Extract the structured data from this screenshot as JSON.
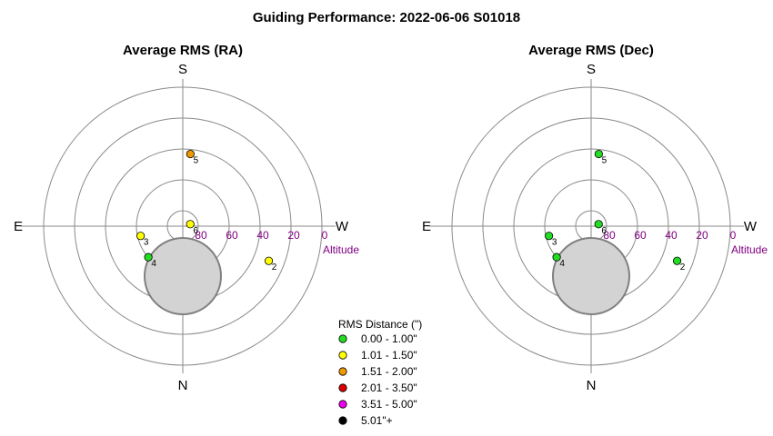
{
  "title": "Guiding Performance: 2022-06-06 S01018",
  "panels": [
    {
      "subtitle": "Average RMS (RA)",
      "key": "ra"
    },
    {
      "subtitle": "Average RMS (Dec)",
      "key": "dec"
    }
  ],
  "directions": {
    "top": "S",
    "bottom": "N",
    "left": "E",
    "right": "W"
  },
  "altitude_ticks": [
    "80",
    "60",
    "40",
    "20",
    "0"
  ],
  "altitude_label": "Altitude",
  "legend": {
    "title": "RMS Distance (\")",
    "items": [
      {
        "label": "0.00 - 1.00\"",
        "color": "#22dd22"
      },
      {
        "label": "1.01 - 1.50\"",
        "color": "#ffff00"
      },
      {
        "label": "1.51 - 2.00\"",
        "color": "#ee9900"
      },
      {
        "label": "2.01 - 3.50\"",
        "color": "#dd0000"
      },
      {
        "label": "3.51 - 5.00\"",
        "color": "#ee00ee"
      },
      {
        "label": "5.01\"+",
        "color": "#000000"
      }
    ]
  },
  "chart_data": [
    {
      "type": "scatter",
      "projection": "polar",
      "title": "Average RMS (RA)",
      "points": [
        {
          "id": "2",
          "azimuth": 292,
          "altitude": 30,
          "color": "#ffff00"
        },
        {
          "id": "3",
          "azimuth": 77,
          "altitude": 62,
          "color": "#ffff00"
        },
        {
          "id": "4",
          "azimuth": 48,
          "altitude": 60,
          "color": "#22dd22"
        },
        {
          "id": "5",
          "azimuth": 186,
          "altitude": 43,
          "color": "#ee9900"
        },
        {
          "id": "6",
          "azimuth": 255,
          "altitude": 85,
          "color": "#ffff00"
        }
      ]
    },
    {
      "type": "scatter",
      "projection": "polar",
      "title": "Average RMS (Dec)",
      "points": [
        {
          "id": "2",
          "azimuth": 292,
          "altitude": 30,
          "color": "#22dd22"
        },
        {
          "id": "3",
          "azimuth": 77,
          "altitude": 62,
          "color": "#22dd22"
        },
        {
          "id": "4",
          "azimuth": 48,
          "altitude": 60,
          "color": "#22dd22"
        },
        {
          "id": "5",
          "azimuth": 186,
          "altitude": 43,
          "color": "#22dd22"
        },
        {
          "id": "6",
          "azimuth": 255,
          "altitude": 85,
          "color": "#22dd22"
        }
      ]
    }
  ]
}
